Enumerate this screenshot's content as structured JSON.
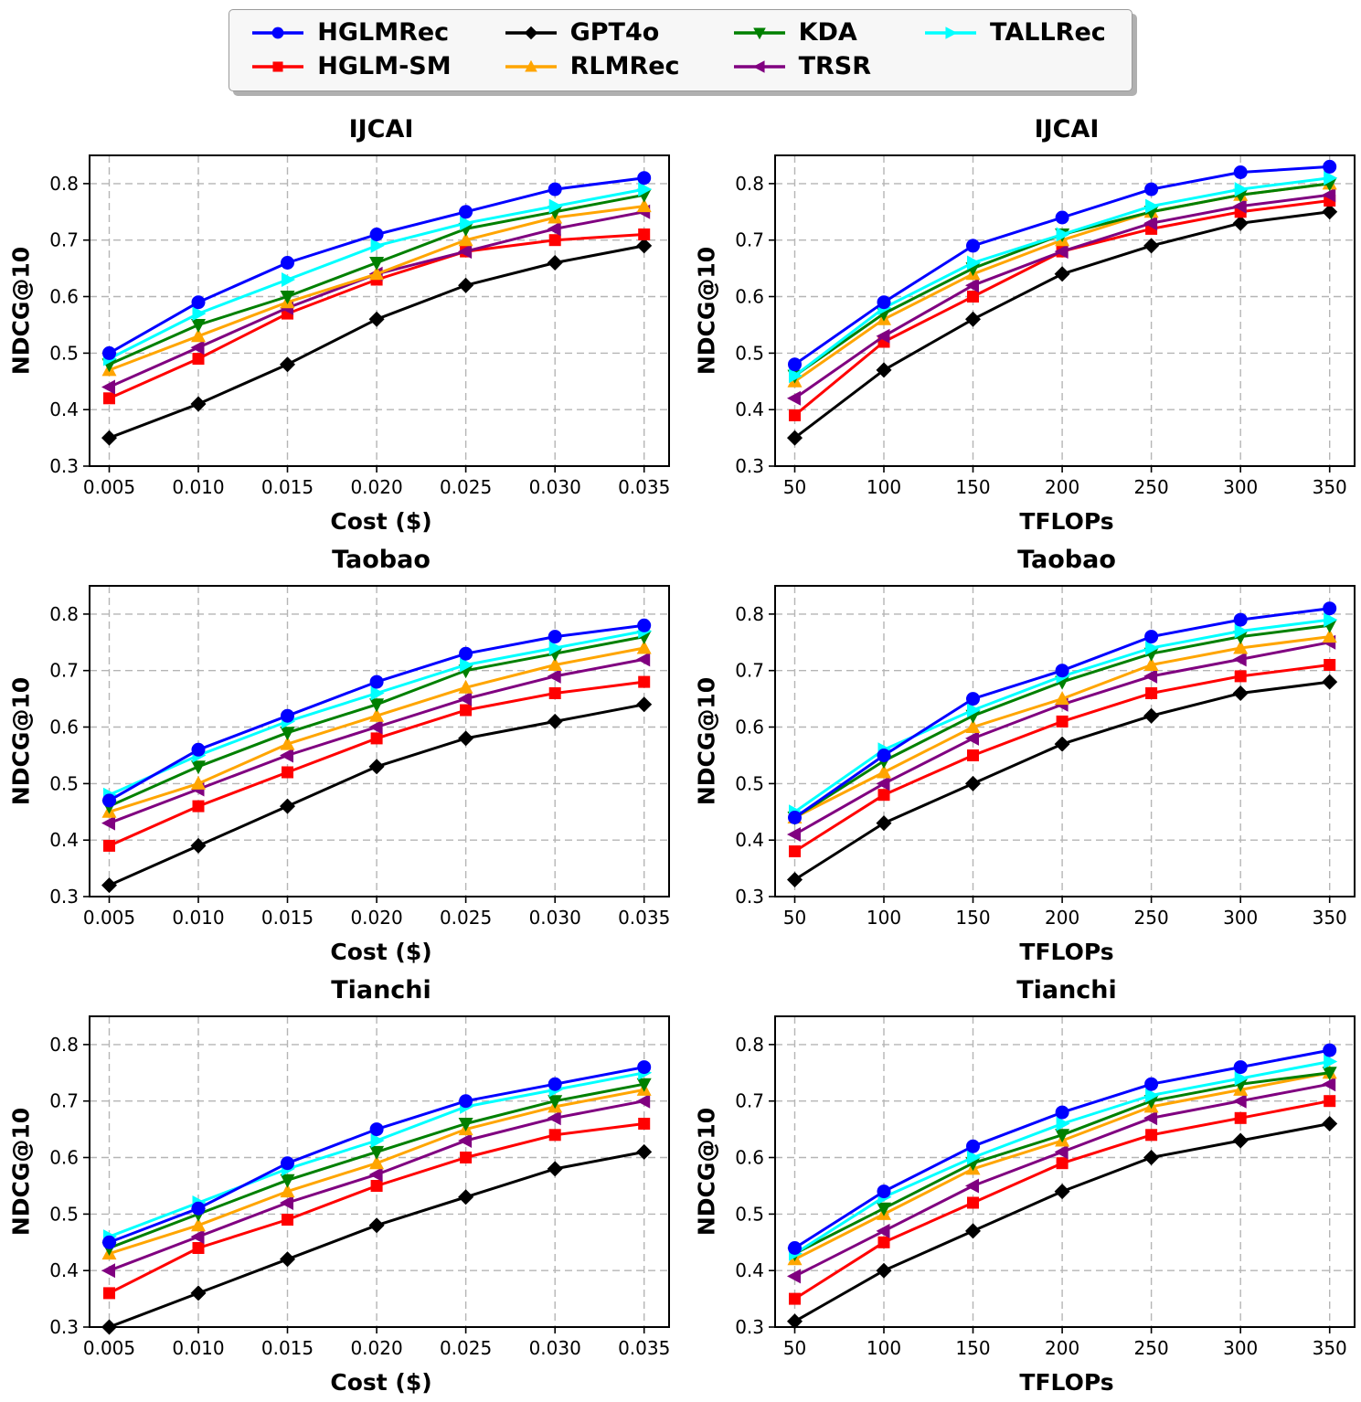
{
  "page": {
    "background": "#ffffff",
    "text_color": "#000000"
  },
  "legend": {
    "position": "top-center",
    "rows": 2,
    "items": [
      {
        "label": "HGLMRec",
        "color": "#0000ff",
        "marker": "circle"
      },
      {
        "label": "HGLM-SM",
        "color": "#ff0000",
        "marker": "square"
      },
      {
        "label": "GPT4o",
        "color": "#000000",
        "marker": "diamond"
      },
      {
        "label": "RLMRec",
        "color": "#ffa500",
        "marker": "triangle-up"
      },
      {
        "label": "KDA",
        "color": "#008000",
        "marker": "triangle-down"
      },
      {
        "label": "TRSR",
        "color": "#800080",
        "marker": "triangle-left"
      },
      {
        "label": "TALLRec",
        "color": "#00ffff",
        "marker": "triangle-right"
      }
    ],
    "draw_order": [
      "GPT4o",
      "HGLM-SM",
      "TRSR",
      "RLMRec",
      "KDA",
      "TALLRec",
      "HGLMRec"
    ]
  },
  "chart_data": [
    {
      "type": "line",
      "title": "IJCAI",
      "xlabel": "Cost ($)",
      "ylabel": "NDCG@10",
      "x": [
        0.005,
        0.01,
        0.015,
        0.02,
        0.025,
        0.03,
        0.035
      ],
      "x_tick_labels": [
        "0.005",
        "0.010",
        "0.015",
        "0.020",
        "0.025",
        "0.030",
        "0.035"
      ],
      "y_ticks": [
        0.3,
        0.4,
        0.5,
        0.6,
        0.7,
        0.8
      ],
      "ylim": [
        0.3,
        0.85
      ],
      "grid": true,
      "series": [
        {
          "name": "HGLMRec",
          "values": [
            0.5,
            0.59,
            0.66,
            0.71,
            0.75,
            0.79,
            0.81
          ]
        },
        {
          "name": "HGLM-SM",
          "values": [
            0.42,
            0.49,
            0.57,
            0.63,
            0.68,
            0.7,
            0.71
          ]
        },
        {
          "name": "GPT4o",
          "values": [
            0.35,
            0.41,
            0.48,
            0.56,
            0.62,
            0.66,
            0.69
          ]
        },
        {
          "name": "RLMRec",
          "values": [
            0.47,
            0.53,
            0.59,
            0.64,
            0.7,
            0.74,
            0.76
          ]
        },
        {
          "name": "KDA",
          "values": [
            0.48,
            0.55,
            0.6,
            0.66,
            0.72,
            0.75,
            0.78
          ]
        },
        {
          "name": "TRSR",
          "values": [
            0.44,
            0.51,
            0.58,
            0.64,
            0.68,
            0.72,
            0.75
          ]
        },
        {
          "name": "TALLRec",
          "values": [
            0.49,
            0.57,
            0.63,
            0.69,
            0.73,
            0.76,
            0.79
          ]
        }
      ]
    },
    {
      "type": "line",
      "title": "IJCAI",
      "xlabel": "TFLOPs",
      "ylabel": "NDCG@10",
      "x": [
        50,
        100,
        150,
        200,
        250,
        300,
        350
      ],
      "x_tick_labels": [
        "50",
        "100",
        "150",
        "200",
        "250",
        "300",
        "350"
      ],
      "y_ticks": [
        0.3,
        0.4,
        0.5,
        0.6,
        0.7,
        0.8
      ],
      "ylim": [
        0.3,
        0.85
      ],
      "grid": true,
      "series": [
        {
          "name": "HGLMRec",
          "values": [
            0.48,
            0.59,
            0.69,
            0.74,
            0.79,
            0.82,
            0.83
          ]
        },
        {
          "name": "HGLM-SM",
          "values": [
            0.39,
            0.52,
            0.6,
            0.68,
            0.72,
            0.75,
            0.77
          ]
        },
        {
          "name": "GPT4o",
          "values": [
            0.35,
            0.47,
            0.56,
            0.64,
            0.69,
            0.73,
            0.75
          ]
        },
        {
          "name": "RLMRec",
          "values": [
            0.45,
            0.56,
            0.64,
            0.7,
            0.75,
            0.78,
            0.8
          ]
        },
        {
          "name": "KDA",
          "values": [
            0.46,
            0.57,
            0.65,
            0.71,
            0.75,
            0.78,
            0.8
          ]
        },
        {
          "name": "TRSR",
          "values": [
            0.42,
            0.53,
            0.62,
            0.68,
            0.73,
            0.76,
            0.78
          ]
        },
        {
          "name": "TALLRec",
          "values": [
            0.46,
            0.58,
            0.66,
            0.71,
            0.76,
            0.79,
            0.81
          ]
        }
      ]
    },
    {
      "type": "line",
      "title": "Taobao",
      "xlabel": "Cost ($)",
      "ylabel": "NDCG@10",
      "x": [
        0.005,
        0.01,
        0.015,
        0.02,
        0.025,
        0.03,
        0.035
      ],
      "x_tick_labels": [
        "0.005",
        "0.010",
        "0.015",
        "0.020",
        "0.025",
        "0.030",
        "0.035"
      ],
      "y_ticks": [
        0.3,
        0.4,
        0.5,
        0.6,
        0.7,
        0.8
      ],
      "ylim": [
        0.3,
        0.85
      ],
      "grid": true,
      "series": [
        {
          "name": "HGLMRec",
          "values": [
            0.47,
            0.56,
            0.62,
            0.68,
            0.73,
            0.76,
            0.78
          ]
        },
        {
          "name": "HGLM-SM",
          "values": [
            0.39,
            0.46,
            0.52,
            0.58,
            0.63,
            0.66,
            0.68
          ]
        },
        {
          "name": "GPT4o",
          "values": [
            0.32,
            0.39,
            0.46,
            0.53,
            0.58,
            0.61,
            0.64
          ]
        },
        {
          "name": "RLMRec",
          "values": [
            0.45,
            0.5,
            0.57,
            0.62,
            0.67,
            0.71,
            0.74
          ]
        },
        {
          "name": "KDA",
          "values": [
            0.46,
            0.53,
            0.59,
            0.64,
            0.7,
            0.73,
            0.76
          ]
        },
        {
          "name": "TRSR",
          "values": [
            0.43,
            0.49,
            0.55,
            0.6,
            0.65,
            0.69,
            0.72
          ]
        },
        {
          "name": "TALLRec",
          "values": [
            0.48,
            0.55,
            0.61,
            0.66,
            0.71,
            0.74,
            0.77
          ]
        }
      ]
    },
    {
      "type": "line",
      "title": "Taobao",
      "xlabel": "TFLOPs",
      "ylabel": "NDCG@10",
      "x": [
        50,
        100,
        150,
        200,
        250,
        300,
        350
      ],
      "x_tick_labels": [
        "50",
        "100",
        "150",
        "200",
        "250",
        "300",
        "350"
      ],
      "y_ticks": [
        0.3,
        0.4,
        0.5,
        0.6,
        0.7,
        0.8
      ],
      "ylim": [
        0.3,
        0.85
      ],
      "grid": true,
      "series": [
        {
          "name": "HGLMRec",
          "values": [
            0.44,
            0.55,
            0.65,
            0.7,
            0.76,
            0.79,
            0.81
          ]
        },
        {
          "name": "HGLM-SM",
          "values": [
            0.38,
            0.48,
            0.55,
            0.61,
            0.66,
            0.69,
            0.71
          ]
        },
        {
          "name": "GPT4o",
          "values": [
            0.33,
            0.43,
            0.5,
            0.57,
            0.62,
            0.66,
            0.68
          ]
        },
        {
          "name": "RLMRec",
          "values": [
            0.44,
            0.52,
            0.6,
            0.65,
            0.71,
            0.74,
            0.76
          ]
        },
        {
          "name": "KDA",
          "values": [
            0.44,
            0.54,
            0.62,
            0.68,
            0.73,
            0.76,
            0.78
          ]
        },
        {
          "name": "TRSR",
          "values": [
            0.41,
            0.5,
            0.58,
            0.64,
            0.69,
            0.72,
            0.75
          ]
        },
        {
          "name": "TALLRec",
          "values": [
            0.45,
            0.56,
            0.63,
            0.69,
            0.74,
            0.77,
            0.79
          ]
        }
      ]
    },
    {
      "type": "line",
      "title": "Tianchi",
      "xlabel": "Cost ($)",
      "ylabel": "NDCG@10",
      "x": [
        0.005,
        0.01,
        0.015,
        0.02,
        0.025,
        0.03,
        0.035
      ],
      "x_tick_labels": [
        "0.005",
        "0.010",
        "0.015",
        "0.020",
        "0.025",
        "0.030",
        "0.035"
      ],
      "y_ticks": [
        0.3,
        0.4,
        0.5,
        0.6,
        0.7,
        0.8
      ],
      "ylim": [
        0.3,
        0.85
      ],
      "grid": true,
      "series": [
        {
          "name": "HGLMRec",
          "values": [
            0.45,
            0.51,
            0.59,
            0.65,
            0.7,
            0.73,
            0.76
          ]
        },
        {
          "name": "HGLM-SM",
          "values": [
            0.36,
            0.44,
            0.49,
            0.55,
            0.6,
            0.64,
            0.66
          ]
        },
        {
          "name": "GPT4o",
          "values": [
            0.3,
            0.36,
            0.42,
            0.48,
            0.53,
            0.58,
            0.61
          ]
        },
        {
          "name": "RLMRec",
          "values": [
            0.43,
            0.48,
            0.54,
            0.59,
            0.65,
            0.69,
            0.72
          ]
        },
        {
          "name": "KDA",
          "values": [
            0.44,
            0.5,
            0.56,
            0.61,
            0.66,
            0.7,
            0.73
          ]
        },
        {
          "name": "TRSR",
          "values": [
            0.4,
            0.46,
            0.52,
            0.57,
            0.63,
            0.67,
            0.7
          ]
        },
        {
          "name": "TALLRec",
          "values": [
            0.46,
            0.52,
            0.58,
            0.63,
            0.69,
            0.72,
            0.75
          ]
        }
      ]
    },
    {
      "type": "line",
      "title": "Tianchi",
      "xlabel": "TFLOPs",
      "ylabel": "NDCG@10",
      "x": [
        50,
        100,
        150,
        200,
        250,
        300,
        350
      ],
      "x_tick_labels": [
        "50",
        "100",
        "150",
        "200",
        "250",
        "300",
        "350"
      ],
      "y_ticks": [
        0.3,
        0.4,
        0.5,
        0.6,
        0.7,
        0.8
      ],
      "ylim": [
        0.3,
        0.85
      ],
      "grid": true,
      "series": [
        {
          "name": "HGLMRec",
          "values": [
            0.44,
            0.54,
            0.62,
            0.68,
            0.73,
            0.76,
            0.79
          ]
        },
        {
          "name": "HGLM-SM",
          "values": [
            0.35,
            0.45,
            0.52,
            0.59,
            0.64,
            0.67,
            0.7
          ]
        },
        {
          "name": "GPT4o",
          "values": [
            0.31,
            0.4,
            0.47,
            0.54,
            0.6,
            0.63,
            0.66
          ]
        },
        {
          "name": "RLMRec",
          "values": [
            0.42,
            0.5,
            0.58,
            0.63,
            0.69,
            0.72,
            0.75
          ]
        },
        {
          "name": "KDA",
          "values": [
            0.43,
            0.51,
            0.59,
            0.64,
            0.7,
            0.73,
            0.75
          ]
        },
        {
          "name": "TRSR",
          "values": [
            0.39,
            0.47,
            0.55,
            0.61,
            0.67,
            0.7,
            0.73
          ]
        },
        {
          "name": "TALLRec",
          "values": [
            0.43,
            0.53,
            0.6,
            0.66,
            0.71,
            0.74,
            0.77
          ]
        }
      ]
    }
  ]
}
